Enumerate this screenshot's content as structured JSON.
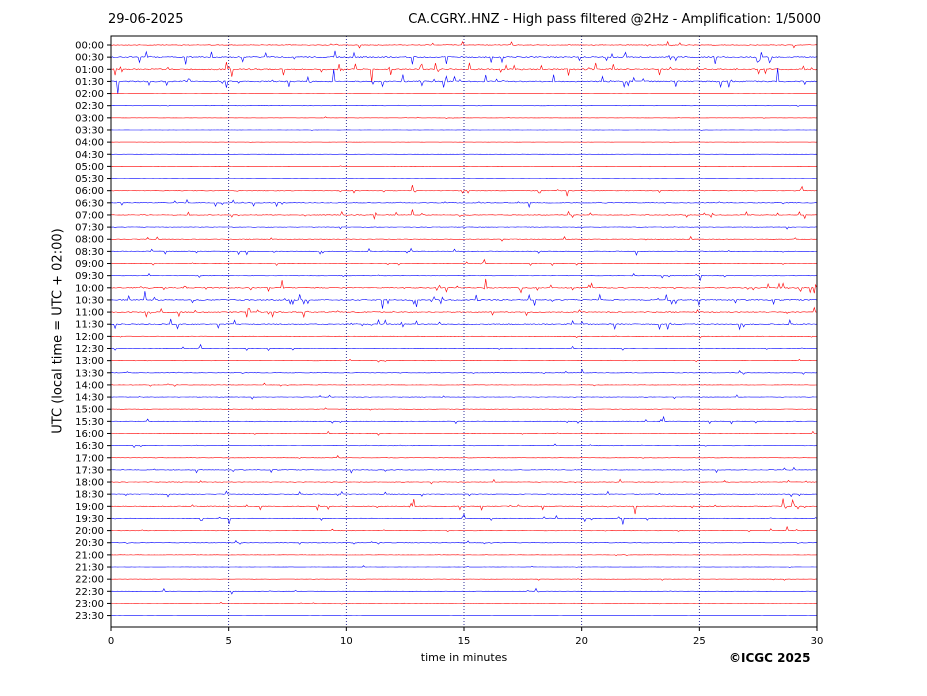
{
  "header": {
    "date": "29-06-2025",
    "title": "CA.CGRY..HNZ - High pass filtered @2Hz - Amplification: 1/5000"
  },
  "footer": {
    "copyright": "©ICGC 2025"
  },
  "colors": {
    "odd_trace": "#ff0000",
    "even_trace": "#0000ff",
    "grid": "#000080"
  },
  "chart_data": {
    "type": "line",
    "title": "CA.CGRY..HNZ - High pass filtered @2Hz - Amplification: 1/5000",
    "xlabel": "time in minutes",
    "ylabel": "UTC (local time = UTC + 02:00)",
    "xlim": [
      0,
      30
    ],
    "x_ticks": [
      0,
      5,
      10,
      15,
      20,
      25,
      30
    ],
    "x_tick_labels": [
      "0",
      "5",
      "10",
      "15",
      "20",
      "25",
      "30"
    ],
    "vertical_grid_minutes": [
      5,
      10,
      15,
      20,
      25
    ],
    "grid": "vertical dotted",
    "trace_color_cycle": [
      "red",
      "blue"
    ],
    "rows": [
      "00:00",
      "00:30",
      "01:00",
      "01:30",
      "02:00",
      "02:30",
      "03:00",
      "03:30",
      "04:00",
      "04:30",
      "05:00",
      "05:30",
      "06:00",
      "06:30",
      "07:00",
      "07:30",
      "08:00",
      "08:30",
      "09:00",
      "09:30",
      "10:00",
      "10:30",
      "11:00",
      "11:30",
      "12:00",
      "12:30",
      "13:00",
      "13:30",
      "14:00",
      "14:30",
      "15:00",
      "15:30",
      "16:00",
      "16:30",
      "17:00",
      "17:30",
      "18:00",
      "18:30",
      "19:00",
      "19:30",
      "20:00",
      "20:30",
      "21:00",
      "21:30",
      "22:00",
      "22:30",
      "23:00",
      "23:30"
    ],
    "row_activity": [
      0.5,
      1.0,
      1.0,
      0.9,
      0.1,
      0.1,
      0.1,
      0.15,
      0.1,
      0.1,
      0.1,
      0.1,
      0.4,
      0.45,
      0.5,
      0.35,
      0.4,
      0.5,
      0.3,
      0.3,
      0.7,
      0.8,
      0.7,
      0.8,
      0.25,
      0.3,
      0.2,
      0.3,
      0.3,
      0.35,
      0.3,
      0.35,
      0.3,
      0.25,
      0.2,
      0.45,
      0.4,
      0.45,
      0.55,
      0.4,
      0.35,
      0.3,
      0.25,
      0.2,
      0.2,
      0.2,
      0.1,
      0.1
    ]
  }
}
